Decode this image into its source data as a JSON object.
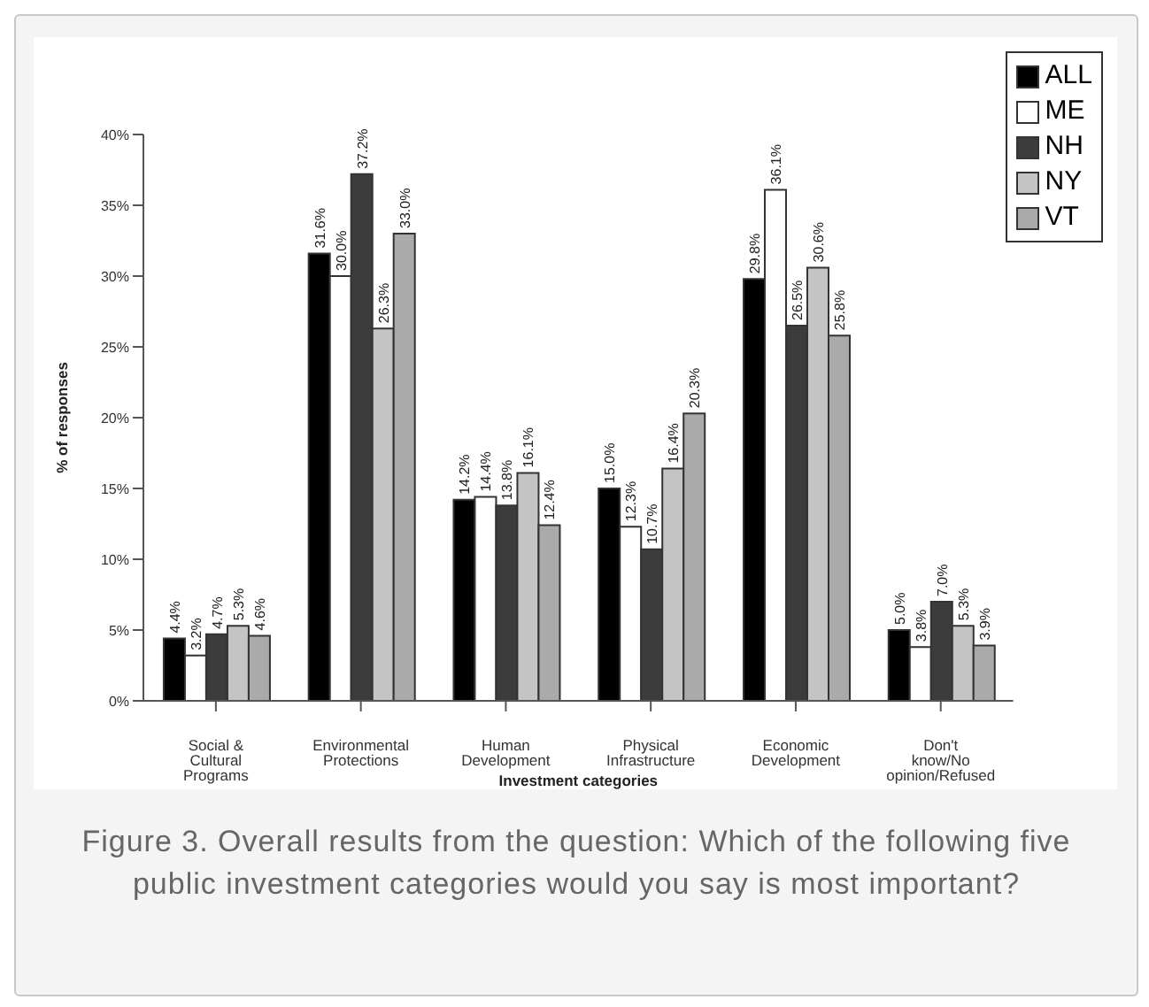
{
  "chart_data": {
    "type": "bar",
    "xlabel": "Investment categories",
    "ylabel": "% of responses",
    "categories": [
      "Social & Cultural Programs",
      "Environmental Protections",
      "Human Development",
      "Physical Infrastructure",
      "Economic Development",
      "Don't know/No opinion/Refused"
    ],
    "series": [
      {
        "name": "ALL",
        "color": "#000000",
        "values": [
          4.4,
          31.6,
          14.2,
          15.0,
          29.8,
          5.0
        ],
        "value_labels": [
          "4.4%",
          "31.6%",
          "14.2%",
          "15.0%",
          "29.8%",
          "5.0%"
        ]
      },
      {
        "name": "ME",
        "color": "#ffffff",
        "values": [
          3.2,
          30.0,
          14.4,
          12.3,
          36.1,
          3.8
        ],
        "value_labels": [
          "3.2%",
          "30.0%",
          "14.4%",
          "12.3%",
          "36.1%",
          "3.8%"
        ]
      },
      {
        "name": "NH",
        "color": "#3c3c3c",
        "values": [
          4.7,
          37.2,
          13.8,
          10.7,
          26.5,
          7.0
        ],
        "value_labels": [
          "4.7%",
          "37.2%",
          "13.8%",
          "10.7%",
          "26.5%",
          "7.0%"
        ]
      },
      {
        "name": "NY",
        "color": "#c4c4c4",
        "values": [
          5.3,
          26.3,
          16.1,
          16.4,
          30.6,
          5.3
        ],
        "value_labels": [
          "5.3%",
          "26.3%",
          "16.1%",
          "16.4%",
          "30.6%",
          "5.3%"
        ]
      },
      {
        "name": "VT",
        "color": "#aaaaaa",
        "values": [
          4.6,
          33.0,
          12.4,
          20.3,
          25.8,
          3.9
        ],
        "value_labels": [
          "4.6%",
          "33.0%",
          "12.4%",
          "20.3%",
          "25.8%",
          "3.9%"
        ]
      }
    ],
    "ylim": [
      0,
      40
    ],
    "yticks": [
      {
        "value": 0,
        "label": "0%"
      },
      {
        "value": 5,
        "label": "5%"
      },
      {
        "value": 10,
        "label": "10%"
      },
      {
        "value": 15,
        "label": "15%"
      },
      {
        "value": 20,
        "label": "20%"
      },
      {
        "value": 25,
        "label": "25%"
      },
      {
        "value": 30,
        "label": "30%"
      },
      {
        "value": 35,
        "label": "35%"
      },
      {
        "value": 40,
        "label": "40%"
      }
    ],
    "legend": "top right",
    "grid": false,
    "annotations": [
      "Figure 3. Overall results from the question: Which of the following five public investment categories would you say is most important?"
    ]
  }
}
